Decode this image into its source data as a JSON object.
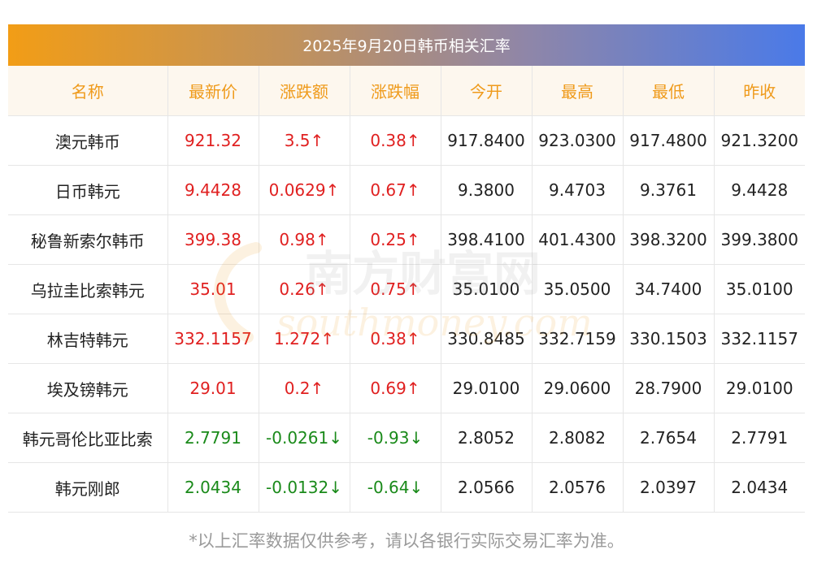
{
  "title": "2025年9月20日韩币相关汇率",
  "columns": [
    "名称",
    "最新价",
    "涨跌额",
    "涨跌幅",
    "今开",
    "最高",
    "最低",
    "昨收"
  ],
  "rows": [
    {
      "name": "澳元韩币",
      "latest": "921.32",
      "change": "3.5↑",
      "pct": "0.38↑",
      "open": "917.8400",
      "high": "923.0300",
      "low": "917.4800",
      "prev": "921.3200",
      "dir": "up"
    },
    {
      "name": "日币韩元",
      "latest": "9.4428",
      "change": "0.0629↑",
      "pct": "0.67↑",
      "open": "9.3800",
      "high": "9.4703",
      "low": "9.3761",
      "prev": "9.4428",
      "dir": "up"
    },
    {
      "name": "秘鲁新索尔韩币",
      "latest": "399.38",
      "change": "0.98↑",
      "pct": "0.25↑",
      "open": "398.4100",
      "high": "401.4300",
      "low": "398.3200",
      "prev": "399.3800",
      "dir": "up"
    },
    {
      "name": "乌拉圭比索韩元",
      "latest": "35.01",
      "change": "0.26↑",
      "pct": "0.75↑",
      "open": "35.0100",
      "high": "35.0500",
      "low": "34.7400",
      "prev": "35.0100",
      "dir": "up"
    },
    {
      "name": "林吉特韩元",
      "latest": "332.1157",
      "change": "1.272↑",
      "pct": "0.38↑",
      "open": "330.8485",
      "high": "332.7159",
      "low": "330.1503",
      "prev": "332.1157",
      "dir": "up"
    },
    {
      "name": "埃及镑韩元",
      "latest": "29.01",
      "change": "0.2↑",
      "pct": "0.69↑",
      "open": "29.0100",
      "high": "29.0600",
      "low": "28.7900",
      "prev": "29.0100",
      "dir": "up"
    },
    {
      "name": "韩元哥伦比亚比索",
      "latest": "2.7791",
      "change": "-0.0261↓",
      "pct": "-0.93↓",
      "open": "2.8052",
      "high": "2.8082",
      "low": "2.7654",
      "prev": "2.7791",
      "dir": "down"
    },
    {
      "name": "韩元刚郎",
      "latest": "2.0434",
      "change": "-0.0132↓",
      "pct": "-0.64↓",
      "open": "2.0566",
      "high": "2.0576",
      "low": "2.0397",
      "prev": "2.0434",
      "dir": "down"
    }
  ],
  "watermark": {
    "cn": "南方财富网",
    "en": "southmoney.com"
  },
  "footnote": "*以上汇率数据仅供参考，请以各银行实际交易汇率为准。",
  "colors": {
    "up": "#e02020",
    "down": "#1a8a1a",
    "header_text": "#ef9a1a",
    "gradient_start": "#f29d16",
    "gradient_end": "#4a7ae8"
  }
}
